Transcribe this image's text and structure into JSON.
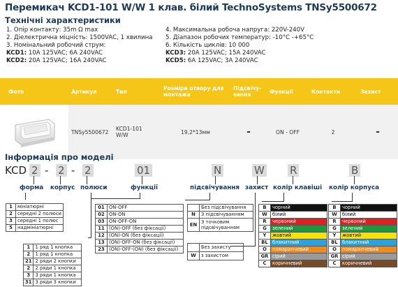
{
  "title": "Перемикач KCD1-101 W/W 1 клав. білий TechnoSystems TNSy5500672",
  "specs": {
    "heading": "Технічні характеристики",
    "left": [
      "1. Опір контакту: 35m Ω  max",
      "2. Діелектрична міцність:  1500VAC, 1 хвилина",
      "3. Номінальний робочий струм:"
    ],
    "kcd1_label": "KCD1:",
    "kcd1_value": " 10A 125VAC; 6A 240VAC",
    "kcd2_label": "KCD2:",
    "kcd2_value": " 20A 125VAC; 16A 240VAC",
    "right": [
      "4. Максимальна робоча напруга: 220V-240V",
      "5. Діапазон робочих температур: -10°C -+65°C",
      "6. Кількість циклів: 10 000"
    ],
    "kcd3_label": "KCD3:",
    "kcd3_value": " 20A 125VAC; 15A 240VAC",
    "kcd5_label": "KCD5:",
    "kcd5_value": " 6A 125VAC; 3A 240VAC"
  },
  "table": {
    "headers": [
      "Фото",
      "Артикул",
      "Тип",
      "Розміри отвору для монтажа",
      "Підсвічу-вання",
      "Функції",
      "Контакти",
      "Захист"
    ],
    "row": {
      "article": "TNSy5500672",
      "type_line1": "KCD1-101",
      "type_line2": "W/W",
      "size": "19,2*13мм",
      "backlight": "-",
      "function": "ON - OFF",
      "contacts": "2",
      "protection": "-"
    }
  },
  "model": {
    "heading": "Інформація про моделі",
    "prefix": "KCD",
    "seg1": "2",
    "dash1": "-",
    "seg2": "2",
    "dash2": "-",
    "seg3": "2",
    "seg4": "01",
    "seg5": "N",
    "seg6": "W",
    "seg7": "R",
    "seg8": "B",
    "labels": {
      "form": "форма",
      "body": "корпус",
      "poles": "полюси",
      "functions": "функції",
      "backlight": "підсвічування",
      "protection": "захист",
      "key_color": "колір клавіші",
      "body_color": "колір корпуса"
    },
    "form_rows": [
      {
        "k": "1",
        "v": "мініатюрні"
      },
      {
        "k": "2",
        "v": "середні 2 полюси"
      },
      {
        "k": "3",
        "v": "середні 1 полюс"
      },
      {
        "k": "5",
        "v": "надмініатюрні"
      }
    ],
    "pole_rows": [
      {
        "k": "1",
        "v": "1 ряд 1 кнопка"
      },
      {
        "k": "2",
        "v": "1 ряд 1 кнопка"
      },
      {
        "k": "21",
        "v": "2 ряди 2 кнопки"
      },
      {
        "k": "2",
        "v": "2 ряди 1 кнопка"
      },
      {
        "k": "3",
        "v": "3 ряди 1 кнопка"
      },
      {
        "k": "31",
        "v": "3 ряди 3 кнопки"
      }
    ],
    "func_rows": [
      {
        "k": "01",
        "v": "ON-OFF"
      },
      {
        "k": "02",
        "v": "ON-ON"
      },
      {
        "k": "03",
        "v": "ON-OFF-ON"
      },
      {
        "k": "11",
        "v": "(ON)-OFF (без фіксації)"
      },
      {
        "k": "12",
        "v": "(ON)-ON (без фіксації)"
      },
      {
        "k": "13",
        "v": "(ON)-OFF-ON (без фіксації)"
      },
      {
        "k": "23",
        "v": "(ON)-OFF-(ON) (без фіксації)"
      }
    ],
    "light_rows": [
      {
        "k": "",
        "v": "Без підсвічування"
      },
      {
        "k": "N",
        "v": "З підсвічуванням"
      },
      {
        "k": "EN",
        "v": "З точковим підсвічуванням"
      }
    ],
    "prot_rows": [
      {
        "k": "",
        "v": "Без захисту"
      },
      {
        "k": "W",
        "v": "з захистом"
      }
    ],
    "colors": [
      {
        "k": "B",
        "v": "чорний",
        "c": "#111111",
        "t": "#ffffff"
      },
      {
        "k": "W",
        "v": "білий",
        "c": "#ffffff",
        "t": "#000000"
      },
      {
        "k": "R",
        "v": "червоний",
        "c": "#e02020",
        "t": "#ffffff"
      },
      {
        "k": "G",
        "v": "зелений",
        "c": "#1a9a3a",
        "t": "#ffffff"
      },
      {
        "k": "Y",
        "v": "жовтий",
        "c": "#f5e400",
        "t": "#000000"
      },
      {
        "k": "BL",
        "v": "блакитний",
        "c": "#29a3e0",
        "t": "#ffffff"
      },
      {
        "k": "O",
        "v": "помаранчевий",
        "c": "#f08a1c",
        "t": "#ffffff"
      },
      {
        "k": "GR",
        "v": "сірий",
        "c": "#9a9a9a",
        "t": "#ffffff"
      },
      {
        "k": "C",
        "v": "коричневий",
        "c": "#7a4a24",
        "t": "#ffffff"
      }
    ]
  }
}
